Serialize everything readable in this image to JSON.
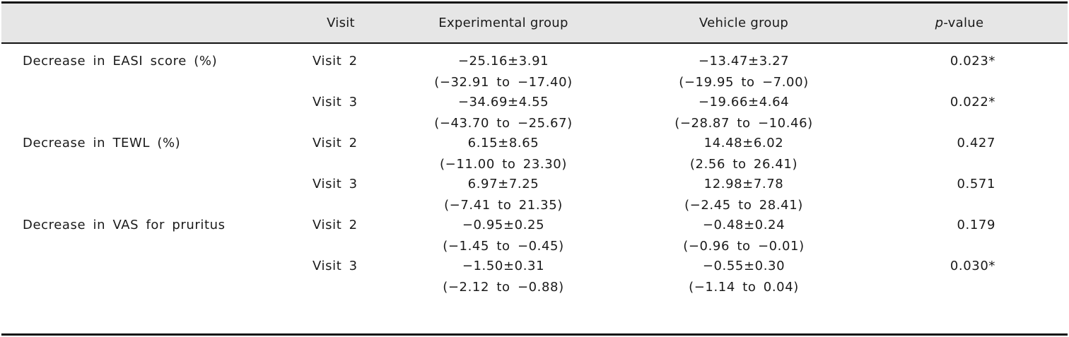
{
  "header": {
    "visit": "Visit",
    "experimental": "Experimental group",
    "vehicle": "Vehicle group",
    "p_italic": "p",
    "p_rest": "-value"
  },
  "rows": [
    {
      "label": "Decrease in EASI score (%)",
      "visits": [
        {
          "visit": "Visit 2",
          "exp_mean": "−25.16±3.91",
          "exp_ci": "(−32.91 to −17.40)",
          "veh_mean": "−13.47±3.27",
          "veh_ci": "(−19.95 to −7.00)",
          "p": "0.023*"
        },
        {
          "visit": "Visit 3",
          "exp_mean": "−34.69±4.55",
          "exp_ci": "(−43.70 to −25.67)",
          "veh_mean": "−19.66±4.64",
          "veh_ci": "(−28.87 to −10.46)",
          "p": "0.022*"
        }
      ]
    },
    {
      "label": "Decrease in TEWL (%)",
      "visits": [
        {
          "visit": "Visit 2",
          "exp_mean": "6.15±8.65",
          "exp_ci": "(−11.00 to 23.30)",
          "veh_mean": "14.48±6.02",
          "veh_ci": "(2.56 to 26.41)",
          "p": "0.427"
        },
        {
          "visit": "Visit 3",
          "exp_mean": "6.97±7.25",
          "exp_ci": "(−7.41 to 21.35)",
          "veh_mean": "12.98±7.78",
          "veh_ci": "(−2.45 to 28.41)",
          "p": "0.571"
        }
      ]
    },
    {
      "label": "Decrease in VAS for pruritus",
      "visits": [
        {
          "visit": "Visit 2",
          "exp_mean": "−0.95±0.25",
          "exp_ci": "(−1.45 to −0.45)",
          "veh_mean": "−0.48±0.24",
          "veh_ci": "(−0.96 to −0.01)",
          "p": "0.179"
        },
        {
          "visit": "Visit 3",
          "exp_mean": "−1.50±0.31",
          "exp_ci": "(−2.12 to −0.88)",
          "veh_mean": "−0.55±0.30",
          "veh_ci": "(−1.14 to 0.04)",
          "p": "0.030*"
        }
      ]
    }
  ]
}
